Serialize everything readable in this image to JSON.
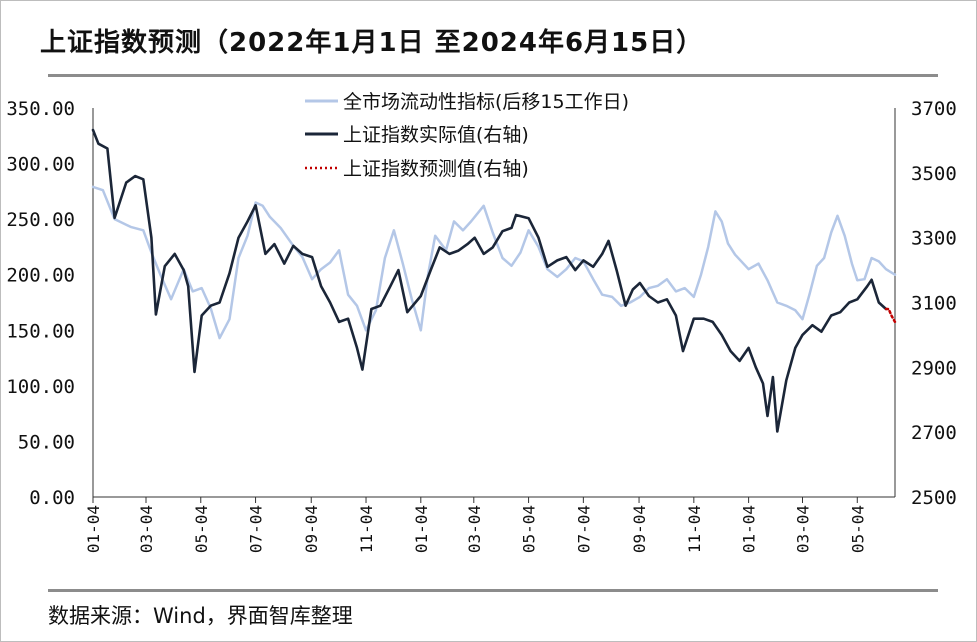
{
  "title": "上证指数预测（2022年1月1日 至2024年6月15日）",
  "source": "数据来源：Wind，界面智库整理",
  "colors": {
    "liquidity": "#b4c7e7",
    "actual": "#1b2638",
    "forecast": "#c00000",
    "axis": "#333333",
    "rule": "#8c8c8c"
  },
  "chart_data": {
    "type": "line",
    "title": "上证指数预测（2022年1月1日 至2024年6月15日）",
    "x_tick_labels": [
      "01-04",
      "03-04",
      "05-04",
      "07-04",
      "09-04",
      "11-04",
      "01-04",
      "03-04",
      "05-04",
      "07-04",
      "09-04",
      "11-04",
      "01-04",
      "03-04",
      "05-04"
    ],
    "x_tick_dates": [
      "2022-01-04",
      "2022-03-04",
      "2022-05-04",
      "2022-07-04",
      "2022-09-04",
      "2022-11-04",
      "2023-01-04",
      "2023-03-04",
      "2023-05-04",
      "2023-07-04",
      "2023-09-04",
      "2023-11-04",
      "2024-01-04",
      "2024-03-04",
      "2024-05-04"
    ],
    "x_range": [
      "2022-01-04",
      "2024-06-15"
    ],
    "left_axis": {
      "ylim": [
        0,
        350
      ],
      "ticks": [
        "0.00",
        "50.00",
        "100.00",
        "150.00",
        "200.00",
        "250.00",
        "300.00",
        "350.00"
      ]
    },
    "right_axis": {
      "ylim": [
        2500,
        3700
      ],
      "ticks": [
        "2500",
        "2700",
        "2900",
        "3100",
        "3300",
        "3500",
        "3700"
      ]
    },
    "legend_position": "top-center",
    "series": [
      {
        "name": "全市场流动性指标(后移15工作日)",
        "axis": "left",
        "points": [
          [
            "2022-01-04",
            279
          ],
          [
            "2022-01-15",
            276
          ],
          [
            "2022-01-28",
            250
          ],
          [
            "2022-02-15",
            243
          ],
          [
            "2022-03-01",
            240
          ],
          [
            "2022-03-10",
            220
          ],
          [
            "2022-03-20",
            200
          ],
          [
            "2022-04-01",
            178
          ],
          [
            "2022-04-15",
            205
          ],
          [
            "2022-04-25",
            185
          ],
          [
            "2022-05-05",
            188
          ],
          [
            "2022-05-15",
            170
          ],
          [
            "2022-05-25",
            143
          ],
          [
            "2022-06-05",
            160
          ],
          [
            "2022-06-15",
            215
          ],
          [
            "2022-06-25",
            235
          ],
          [
            "2022-07-04",
            265
          ],
          [
            "2022-07-12",
            262
          ],
          [
            "2022-07-20",
            252
          ],
          [
            "2022-08-01",
            242
          ],
          [
            "2022-08-15",
            226
          ],
          [
            "2022-08-25",
            216
          ],
          [
            "2022-09-05",
            196
          ],
          [
            "2022-09-15",
            205
          ],
          [
            "2022-09-25",
            211
          ],
          [
            "2022-10-05",
            222
          ],
          [
            "2022-10-15",
            182
          ],
          [
            "2022-10-25",
            172
          ],
          [
            "2022-11-04",
            150
          ],
          [
            "2022-11-15",
            168
          ],
          [
            "2022-11-25",
            215
          ],
          [
            "2022-12-05",
            240
          ],
          [
            "2022-12-15",
            210
          ],
          [
            "2022-12-25",
            178
          ],
          [
            "2023-01-04",
            150
          ],
          [
            "2023-01-12",
            200
          ],
          [
            "2023-01-20",
            235
          ],
          [
            "2023-02-01",
            222
          ],
          [
            "2023-02-10",
            248
          ],
          [
            "2023-02-20",
            240
          ],
          [
            "2023-03-01",
            248
          ],
          [
            "2023-03-15",
            262
          ],
          [
            "2023-03-25",
            238
          ],
          [
            "2023-04-05",
            215
          ],
          [
            "2023-04-15",
            208
          ],
          [
            "2023-04-25",
            220
          ],
          [
            "2023-05-04",
            240
          ],
          [
            "2023-05-15",
            225
          ],
          [
            "2023-05-25",
            205
          ],
          [
            "2023-06-05",
            198
          ],
          [
            "2023-06-15",
            205
          ],
          [
            "2023-06-25",
            215
          ],
          [
            "2023-07-04",
            212
          ],
          [
            "2023-07-15",
            196
          ],
          [
            "2023-07-25",
            182
          ],
          [
            "2023-08-05",
            180
          ],
          [
            "2023-08-15",
            172
          ],
          [
            "2023-08-25",
            175
          ],
          [
            "2023-09-05",
            180
          ],
          [
            "2023-09-15",
            188
          ],
          [
            "2023-09-25",
            190
          ],
          [
            "2023-10-05",
            196
          ],
          [
            "2023-10-15",
            185
          ],
          [
            "2023-10-25",
            188
          ],
          [
            "2023-11-04",
            180
          ],
          [
            "2023-11-12",
            200
          ],
          [
            "2023-11-20",
            225
          ],
          [
            "2023-11-28",
            257
          ],
          [
            "2023-12-05",
            248
          ],
          [
            "2023-12-12",
            228
          ],
          [
            "2023-12-20",
            218
          ],
          [
            "2024-01-04",
            205
          ],
          [
            "2024-01-15",
            210
          ],
          [
            "2024-01-25",
            195
          ],
          [
            "2024-02-05",
            175
          ],
          [
            "2024-02-15",
            172
          ],
          [
            "2024-02-25",
            168
          ],
          [
            "2024-03-04",
            160
          ],
          [
            "2024-03-12",
            183
          ],
          [
            "2024-03-20",
            208
          ],
          [
            "2024-03-28",
            215
          ],
          [
            "2024-04-05",
            238
          ],
          [
            "2024-04-12",
            253
          ],
          [
            "2024-04-20",
            235
          ],
          [
            "2024-04-28",
            210
          ],
          [
            "2024-05-04",
            195
          ],
          [
            "2024-05-12",
            196
          ],
          [
            "2024-05-20",
            215
          ],
          [
            "2024-05-28",
            212
          ],
          [
            "2024-06-05",
            205
          ],
          [
            "2024-06-15",
            200
          ]
        ]
      },
      {
        "name": "上证指数实际值(右轴)",
        "axis": "right",
        "points": [
          [
            "2022-01-04",
            3632
          ],
          [
            "2022-01-10",
            3590
          ],
          [
            "2022-01-20",
            3575
          ],
          [
            "2022-01-28",
            3361
          ],
          [
            "2022-02-10",
            3470
          ],
          [
            "2022-02-20",
            3490
          ],
          [
            "2022-03-01",
            3480
          ],
          [
            "2022-03-10",
            3300
          ],
          [
            "2022-03-15",
            3063
          ],
          [
            "2022-03-25",
            3212
          ],
          [
            "2022-04-05",
            3250
          ],
          [
            "2022-04-15",
            3200
          ],
          [
            "2022-04-20",
            3150
          ],
          [
            "2022-04-27",
            2886
          ],
          [
            "2022-05-05",
            3060
          ],
          [
            "2022-05-15",
            3090
          ],
          [
            "2022-05-25",
            3100
          ],
          [
            "2022-06-05",
            3190
          ],
          [
            "2022-06-15",
            3300
          ],
          [
            "2022-06-25",
            3350
          ],
          [
            "2022-07-04",
            3400
          ],
          [
            "2022-07-15",
            3250
          ],
          [
            "2022-07-25",
            3280
          ],
          [
            "2022-08-05",
            3220
          ],
          [
            "2022-08-15",
            3275
          ],
          [
            "2022-08-25",
            3250
          ],
          [
            "2022-09-05",
            3240
          ],
          [
            "2022-09-15",
            3150
          ],
          [
            "2022-09-25",
            3100
          ],
          [
            "2022-10-05",
            3040
          ],
          [
            "2022-10-15",
            3050
          ],
          [
            "2022-10-25",
            2960
          ],
          [
            "2022-10-31",
            2893
          ],
          [
            "2022-11-10",
            3080
          ],
          [
            "2022-11-20",
            3090
          ],
          [
            "2022-12-01",
            3150
          ],
          [
            "2022-12-10",
            3200
          ],
          [
            "2022-12-20",
            3070
          ],
          [
            "2023-01-04",
            3120
          ],
          [
            "2023-01-15",
            3200
          ],
          [
            "2023-01-25",
            3270
          ],
          [
            "2023-02-05",
            3250
          ],
          [
            "2023-02-15",
            3260
          ],
          [
            "2023-02-25",
            3280
          ],
          [
            "2023-03-05",
            3300
          ],
          [
            "2023-03-15",
            3250
          ],
          [
            "2023-03-25",
            3270
          ],
          [
            "2023-04-05",
            3320
          ],
          [
            "2023-04-15",
            3330
          ],
          [
            "2023-04-20",
            3370
          ],
          [
            "2023-05-04",
            3360
          ],
          [
            "2023-05-15",
            3300
          ],
          [
            "2023-05-25",
            3210
          ],
          [
            "2023-06-05",
            3230
          ],
          [
            "2023-06-15",
            3240
          ],
          [
            "2023-06-25",
            3200
          ],
          [
            "2023-07-04",
            3230
          ],
          [
            "2023-07-15",
            3210
          ],
          [
            "2023-07-25",
            3250
          ],
          [
            "2023-08-01",
            3290
          ],
          [
            "2023-08-10",
            3200
          ],
          [
            "2023-08-20",
            3090
          ],
          [
            "2023-08-28",
            3140
          ],
          [
            "2023-09-05",
            3160
          ],
          [
            "2023-09-15",
            3120
          ],
          [
            "2023-09-25",
            3100
          ],
          [
            "2023-10-05",
            3110
          ],
          [
            "2023-10-15",
            3060
          ],
          [
            "2023-10-23",
            2950
          ],
          [
            "2023-11-04",
            3050
          ],
          [
            "2023-11-15",
            3050
          ],
          [
            "2023-11-25",
            3040
          ],
          [
            "2023-12-05",
            3000
          ],
          [
            "2023-12-15",
            2950
          ],
          [
            "2023-12-25",
            2920
          ],
          [
            "2024-01-04",
            2960
          ],
          [
            "2024-01-12",
            2900
          ],
          [
            "2024-01-20",
            2850
          ],
          [
            "2024-01-25",
            2750
          ],
          [
            "2024-01-31",
            2870
          ],
          [
            "2024-02-05",
            2702
          ],
          [
            "2024-02-15",
            2860
          ],
          [
            "2024-02-25",
            2960
          ],
          [
            "2024-03-04",
            3000
          ],
          [
            "2024-03-15",
            3030
          ],
          [
            "2024-03-25",
            3010
          ],
          [
            "2024-04-05",
            3060
          ],
          [
            "2024-04-15",
            3070
          ],
          [
            "2024-04-25",
            3100
          ],
          [
            "2024-05-04",
            3110
          ],
          [
            "2024-05-15",
            3150
          ],
          [
            "2024-05-20",
            3170
          ],
          [
            "2024-05-28",
            3100
          ],
          [
            "2024-06-05",
            3080
          ]
        ]
      },
      {
        "name": "上证指数预测值(右轴)",
        "axis": "right",
        "points": [
          [
            "2024-06-05",
            3080
          ],
          [
            "2024-06-08",
            3080
          ],
          [
            "2024-06-11",
            3060
          ],
          [
            "2024-06-15",
            3040
          ]
        ]
      }
    ]
  }
}
